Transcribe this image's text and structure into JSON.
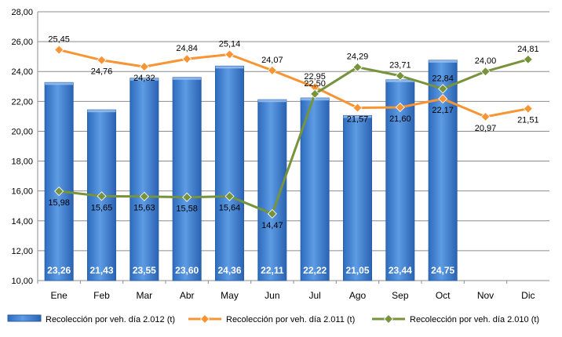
{
  "chart_data": {
    "type": "bar",
    "categories": [
      "Ene",
      "Feb",
      "Mar",
      "Abr",
      "May",
      "Jun",
      "Jul",
      "Ago",
      "Sep",
      "Oct",
      "Nov",
      "Dic"
    ],
    "ylim": [
      10,
      28
    ],
    "yticks": [
      "10,00",
      "12,00",
      "14,00",
      "16,00",
      "18,00",
      "20,00",
      "22,00",
      "24,00",
      "26,00",
      "28,00"
    ],
    "grid": true,
    "legend_position": "bottom",
    "series": [
      {
        "name": "Recolección por veh. día 2.012 (t)",
        "type": "bar",
        "color": "#4a8ad8",
        "values": [
          23.26,
          21.43,
          23.55,
          23.6,
          24.36,
          22.11,
          22.22,
          21.05,
          23.44,
          24.75,
          null,
          null
        ],
        "labels": [
          "23,26",
          "21,43",
          "23,55",
          "23,60",
          "24,36",
          "22,11",
          "22,22",
          "21,05",
          "23,44",
          "24,75",
          "",
          ""
        ]
      },
      {
        "name": "Recolección por veh. día 2.011 (t)",
        "type": "line",
        "color": "#f79433",
        "values": [
          25.45,
          24.76,
          24.32,
          24.84,
          25.14,
          24.07,
          22.95,
          21.57,
          21.6,
          22.17,
          20.97,
          21.51
        ],
        "labels": [
          "25,45",
          "24,76",
          "24,32",
          "24,84",
          "25,14",
          "24,07",
          "22,95",
          "21,57",
          "21,60",
          "22,17",
          "20,97",
          "21,51"
        ]
      },
      {
        "name": "Recolección por veh. día 2.010 (t)",
        "type": "line",
        "color": "#77933c",
        "values": [
          15.98,
          15.65,
          15.63,
          15.58,
          15.64,
          14.47,
          22.5,
          24.29,
          23.71,
          22.84,
          24.0,
          24.81
        ],
        "labels": [
          "15,98",
          "15,65",
          "15,63",
          "15,58",
          "15,64",
          "14,47",
          "22,50",
          "24,29",
          "23,71",
          "22,84",
          "24,00",
          "24,81"
        ]
      }
    ]
  }
}
